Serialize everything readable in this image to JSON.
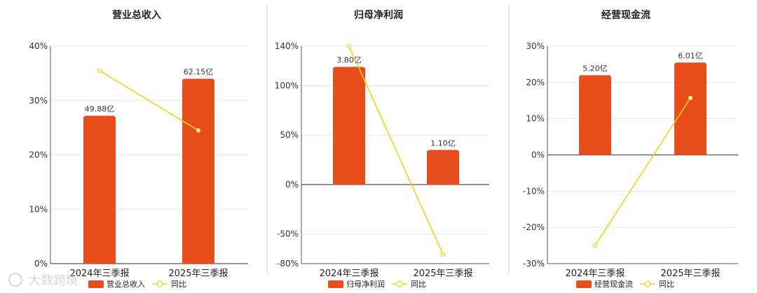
{
  "watermark": "大数跨境",
  "chart_data": [
    {
      "type": "bar",
      "title": "营业总收入",
      "categories": [
        "2024年三季报",
        "2025年三季报"
      ],
      "bar_labels": [
        "49.88亿",
        "62.15亿"
      ],
      "y_ticks": [
        "40%",
        "30%",
        "20%",
        "10%",
        "0%"
      ],
      "ylim": [
        0,
        40
      ],
      "series": [
        {
          "name": "营业总收入",
          "type": "bar",
          "values": [
            27.2,
            34.0
          ],
          "color": "#e84d1c"
        },
        {
          "name": "同比",
          "type": "line",
          "values": [
            35.5,
            24.5
          ],
          "color": "#f2d21b"
        }
      ]
    },
    {
      "type": "bar",
      "title": "归母净利润",
      "categories": [
        "2024年三季报",
        "2025年三季报"
      ],
      "bar_labels": [
        "3.80亿",
        "1.10亿"
      ],
      "y_ticks": [
        "140%",
        "100%",
        "50%",
        "0%",
        "-50%",
        "-80%"
      ],
      "ylim": [
        -80,
        140
      ],
      "series": [
        {
          "name": "归母净利润",
          "type": "bar",
          "values": [
            119,
            35
          ],
          "color": "#e84d1c"
        },
        {
          "name": "同比",
          "type": "line",
          "values": [
            140,
            -70.5
          ],
          "color": "#f2d21b"
        }
      ]
    },
    {
      "type": "bar",
      "title": "经营现金流",
      "categories": [
        "2024年三季报",
        "2025年三季报"
      ],
      "bar_labels": [
        "5.20亿",
        "6.01亿"
      ],
      "y_ticks": [
        "30%",
        "20%",
        "10%",
        "0%",
        "-10%",
        "-20%",
        "-30%"
      ],
      "ylim": [
        -30,
        30
      ],
      "series": [
        {
          "name": "经营现金流",
          "type": "bar",
          "values": [
            22,
            25.5
          ],
          "color": "#e84d1c"
        },
        {
          "name": "同比",
          "type": "line",
          "values": [
            -25,
            15.7
          ],
          "color": "#f2d21b"
        }
      ]
    }
  ]
}
